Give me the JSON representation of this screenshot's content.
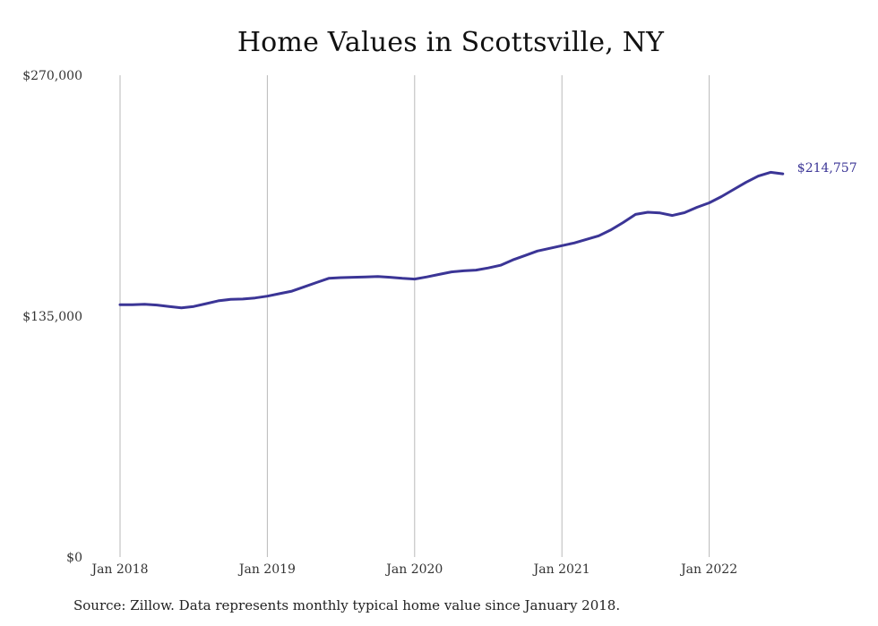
{
  "chart_data": {
    "type": "line",
    "title": "Home Values in Scottsville, NY",
    "source": "Source: Zillow. Data represents monthly typical home value since January 2018.",
    "y_ticks": [
      {
        "value": 0,
        "label": "$0"
      },
      {
        "value": 135000,
        "label": "$135,000"
      },
      {
        "value": 270000,
        "label": "$270,000"
      }
    ],
    "x_ticks": [
      {
        "month_index": 0,
        "label": "Jan 2018"
      },
      {
        "month_index": 12,
        "label": "Jan 2019"
      },
      {
        "month_index": 24,
        "label": "Jan 2020"
      },
      {
        "month_index": 36,
        "label": "Jan 2021"
      },
      {
        "month_index": 48,
        "label": "Jan 2022"
      }
    ],
    "ylim": [
      0,
      270000
    ],
    "grid": "vertical",
    "series_color": "#3b3596",
    "end_label": "$214,757",
    "series": [
      {
        "values": [
          141400,
          141400,
          141600,
          141200,
          140400,
          139600,
          140400,
          142000,
          143600,
          144400,
          144600,
          145200,
          146200,
          147600,
          149000,
          151400,
          153800,
          156200,
          156600,
          156800,
          157000,
          157200,
          156800,
          156200,
          155800,
          157000,
          158400,
          159800,
          160400,
          160800,
          162000,
          163500,
          166500,
          169000,
          171500,
          173000,
          174500,
          176000,
          178000,
          180000,
          183400,
          187500,
          192000,
          193200,
          192800,
          191400,
          193000,
          196000,
          198500,
          202000,
          206000,
          210000,
          213500,
          215600,
          214757
        ]
      }
    ]
  }
}
